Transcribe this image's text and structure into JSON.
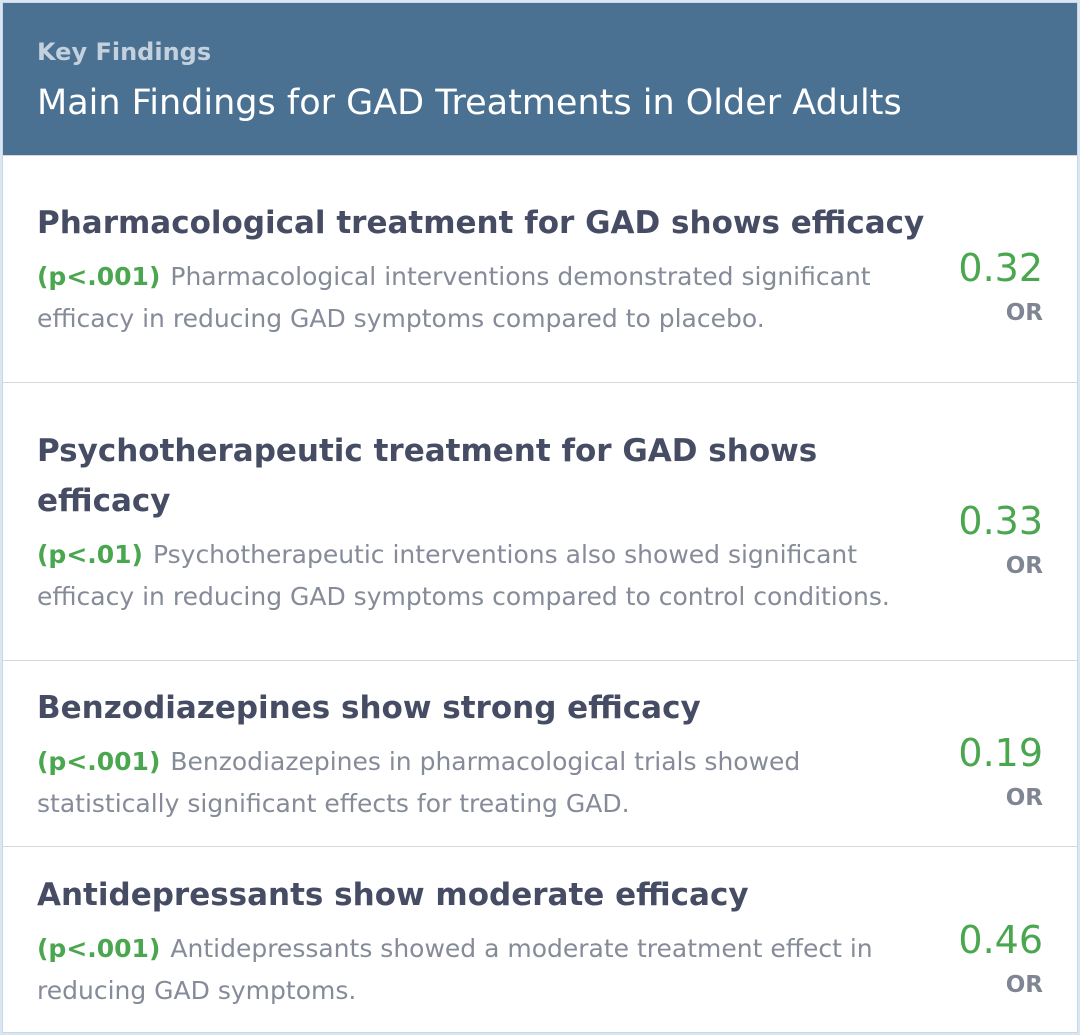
{
  "header": {
    "eyebrow": "Key Findings",
    "title": "Main Findings for GAD Treatments in Older Adults"
  },
  "findings": [
    {
      "title": "Pharmacological treatment for GAD shows efficacy",
      "p_value": "(p<.001)",
      "description": "Pharmacological interventions demonstrated significant efficacy in reducing GAD symptoms compared to placebo.",
      "value": "0.32",
      "unit": "OR"
    },
    {
      "title": "Psychotherapeutic treatment for GAD shows efficacy",
      "p_value": "(p<.01)",
      "description": "Psychotherapeutic interventions also showed significant efficacy in reducing GAD symptoms compared to control conditions.",
      "value": "0.33",
      "unit": "OR"
    },
    {
      "title": "Benzodiazepines show strong efficacy",
      "p_value": "(p<.001)",
      "description": "Benzodiazepines in pharmacological trials showed statistically significant effects for treating GAD.",
      "value": "0.19",
      "unit": "OR"
    },
    {
      "title": "Antidepressants show moderate efficacy",
      "p_value": "(p<.001)",
      "description": "Antidepressants showed a moderate treatment effect in reducing GAD symptoms.",
      "value": "0.46",
      "unit": "OR"
    }
  ],
  "colors": {
    "header_bg": "#4a7191",
    "accent_green": "#4aa74f",
    "title_text": "#454c63",
    "body_text": "#858b98"
  }
}
